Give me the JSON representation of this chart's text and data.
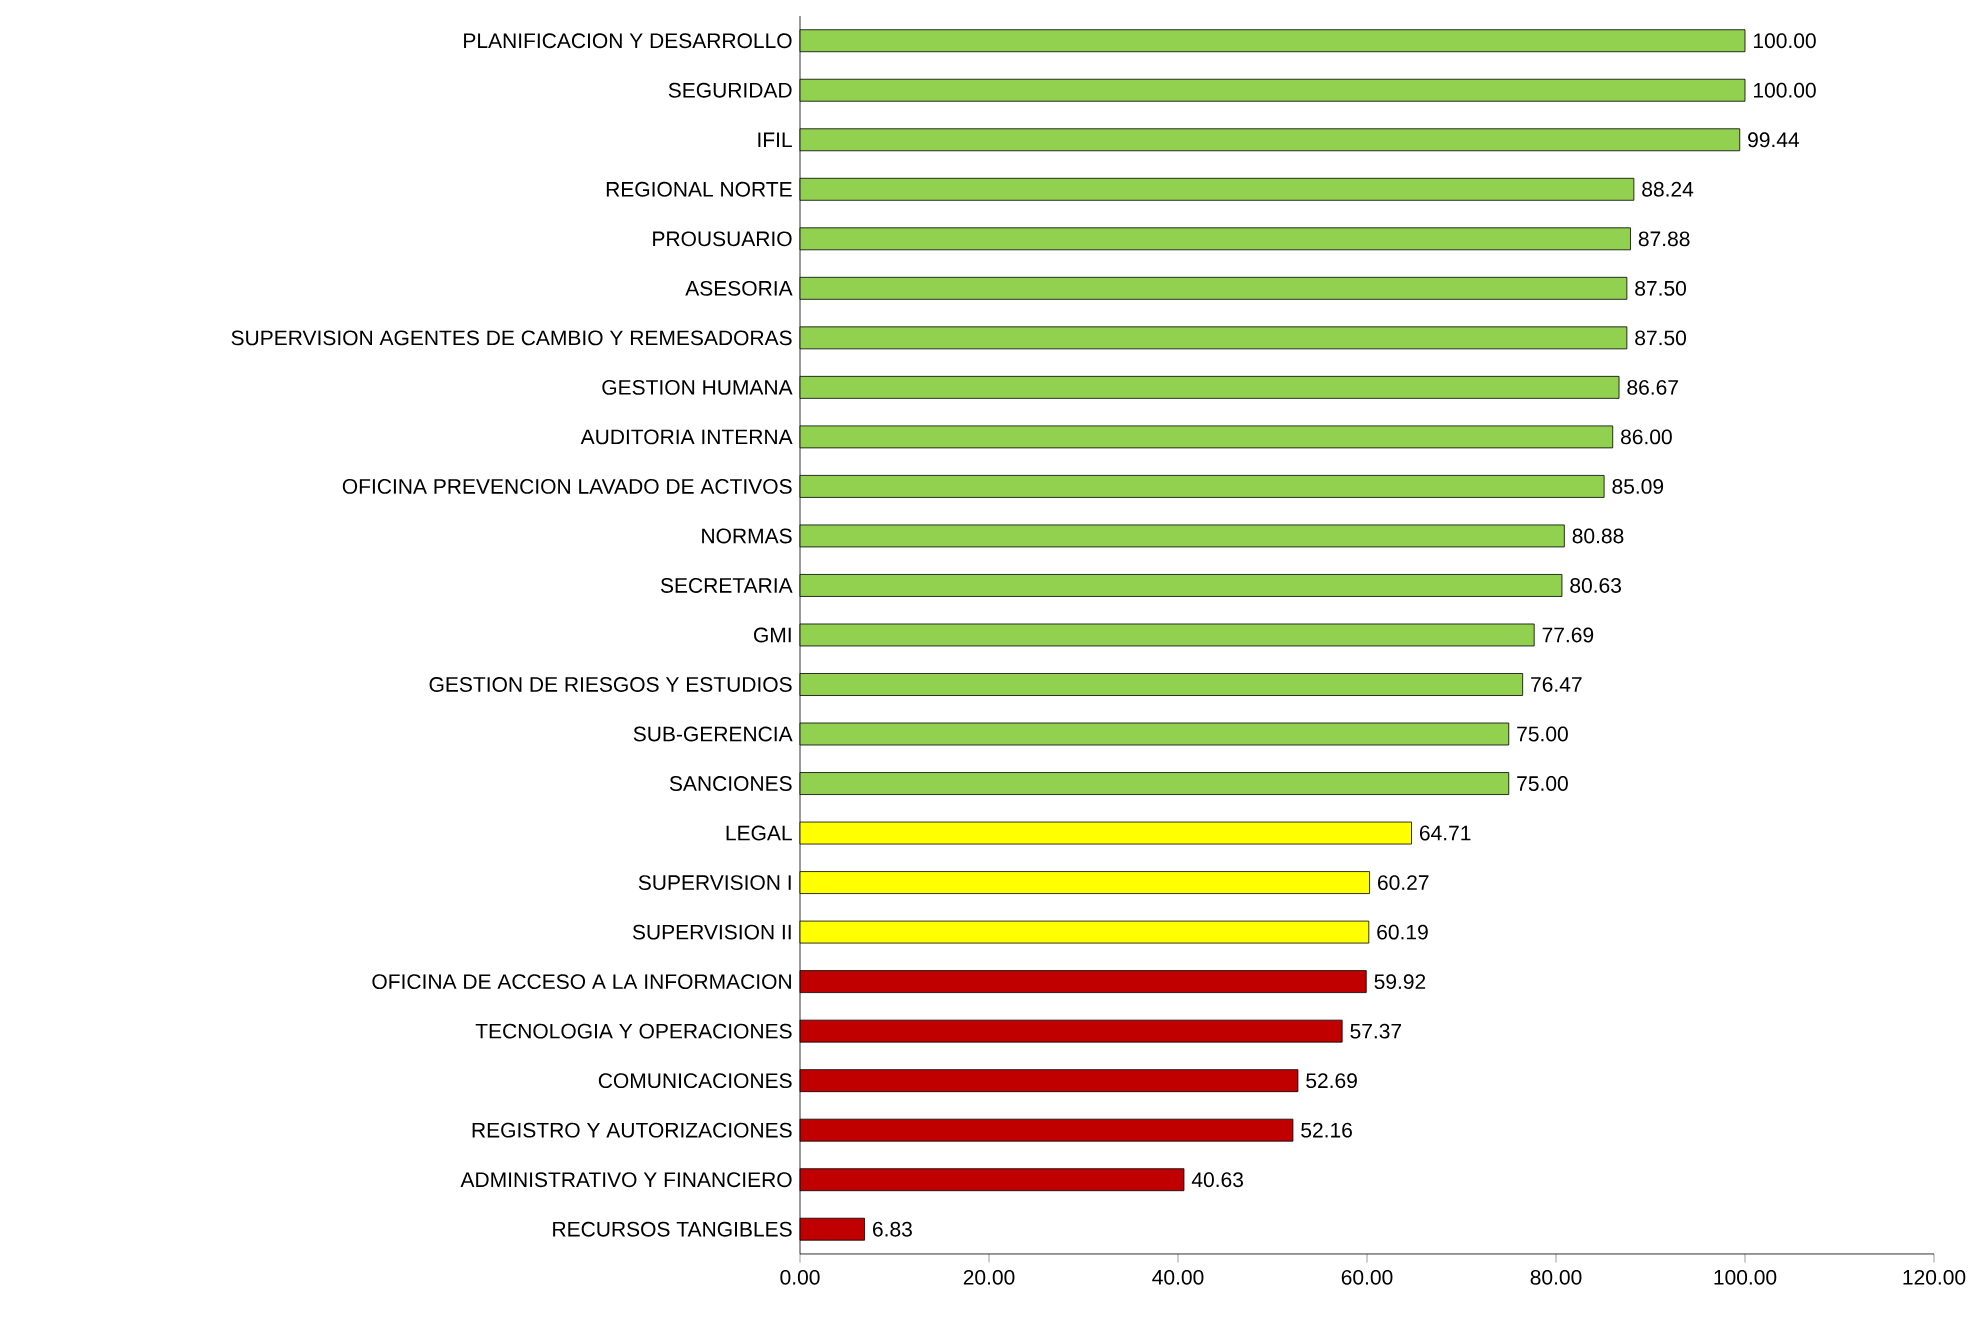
{
  "chart_data": {
    "type": "bar",
    "orientation": "horizontal",
    "categories": [
      "PLANIFICACION Y DESARROLLO",
      "SEGURIDAD",
      "IFIL",
      "REGIONAL NORTE",
      "PROUSUARIO",
      "ASESORIA",
      "SUPERVISION AGENTES DE CAMBIO Y REMESADORAS",
      "GESTION HUMANA",
      "AUDITORIA INTERNA",
      "OFICINA PREVENCION LAVADO DE ACTIVOS",
      "NORMAS",
      "SECRETARIA",
      "GMI",
      "GESTION DE RIESGOS Y ESTUDIOS",
      "SUB-GERENCIA",
      "SANCIONES",
      "LEGAL",
      "SUPERVISION I",
      "SUPERVISION II",
      "OFICINA DE ACCESO A LA INFORMACION",
      "TECNOLOGIA Y OPERACIONES",
      "COMUNICACIONES",
      "REGISTRO Y AUTORIZACIONES",
      "ADMINISTRATIVO Y FINANCIERO",
      "RECURSOS TANGIBLES"
    ],
    "values": [
      100,
      100,
      99.44,
      88.24,
      87.88,
      87.5,
      87.5,
      86.67,
      86,
      85.09,
      80.88,
      80.63,
      77.69,
      76.47,
      75,
      75,
      64.71,
      60.27,
      60.19,
      59.92,
      57.37,
      52.69,
      52.16,
      40.63,
      6.83
    ],
    "value_labels": [
      "100.00",
      "100.00",
      "99.44",
      "88.24",
      "87.88",
      "87.50",
      "87.50",
      "86.67",
      "86.00",
      "85.09",
      "80.88",
      "80.63",
      "77.69",
      "76.47",
      "75.00",
      "75.00",
      "64.71",
      "60.27",
      "60.19",
      "59.92",
      "57.37",
      "52.69",
      "52.16",
      "40.63",
      "6.83"
    ],
    "colors": [
      "#92d050",
      "#92d050",
      "#92d050",
      "#92d050",
      "#92d050",
      "#92d050",
      "#92d050",
      "#92d050",
      "#92d050",
      "#92d050",
      "#92d050",
      "#92d050",
      "#92d050",
      "#92d050",
      "#92d050",
      "#92d050",
      "#ffff00",
      "#ffff00",
      "#ffff00",
      "#c00000",
      "#c00000",
      "#c00000",
      "#c00000",
      "#c00000",
      "#c00000"
    ],
    "xlim": [
      0,
      120
    ],
    "xticks": [
      {
        "value": 0,
        "label": "0.00"
      },
      {
        "value": 20,
        "label": "20.00"
      },
      {
        "value": 40,
        "label": "40.00"
      },
      {
        "value": 60,
        "label": "60.00"
      },
      {
        "value": 80,
        "label": "80.00"
      },
      {
        "value": 100,
        "label": "100.00"
      },
      {
        "value": 120,
        "label": "120.00"
      }
    ]
  }
}
